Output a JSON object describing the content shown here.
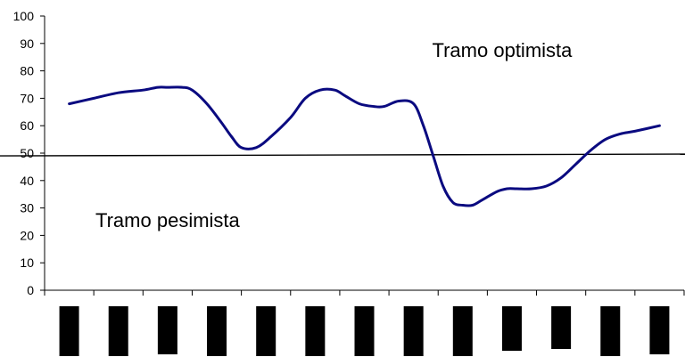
{
  "chart_data": {
    "type": "line",
    "title": "",
    "xlabel": "",
    "ylabel": "",
    "ylim": [
      0,
      100
    ],
    "y_ticks": [
      0,
      10,
      20,
      30,
      40,
      50,
      60,
      70,
      80,
      90,
      100
    ],
    "grid": false,
    "legend": "none",
    "x_category_count": 13,
    "series": [
      {
        "x": [
          0.5,
          1.0,
          1.5,
          2.0,
          2.3,
          2.5,
          2.8,
          3.0,
          3.3,
          3.6,
          3.8,
          4.0,
          4.3,
          4.6,
          5.0,
          5.3,
          5.6,
          5.9,
          6.1,
          6.4,
          6.7,
          6.9,
          7.2,
          7.5,
          7.7,
          7.9,
          8.1,
          8.3,
          8.5,
          8.7,
          8.9,
          9.2,
          9.4,
          9.6,
          9.9,
          10.2,
          10.5,
          10.8,
          11.1,
          11.4,
          11.7,
          12.0,
          12.5
        ],
        "values": [
          68,
          70,
          72,
          73,
          74,
          74,
          74,
          73,
          68,
          61,
          56,
          52,
          52,
          56,
          63,
          70,
          73,
          73,
          71,
          68,
          67,
          67,
          69,
          68,
          60,
          49,
          38,
          32,
          31,
          31,
          33,
          36,
          37,
          37,
          37,
          38,
          41,
          46,
          51,
          55,
          57,
          58,
          60
        ],
        "color": "#0a0a80"
      }
    ],
    "reference_line": {
      "value": 49,
      "color": "#000000"
    },
    "annotations": [
      {
        "text": "Tramo optimista",
        "x": 9.3,
        "y": 85
      },
      {
        "text": "Tramo pesimista",
        "x": 2.5,
        "y": 23
      }
    ],
    "redacted_x_labels": {
      "count": 13,
      "color": "#000000"
    }
  }
}
